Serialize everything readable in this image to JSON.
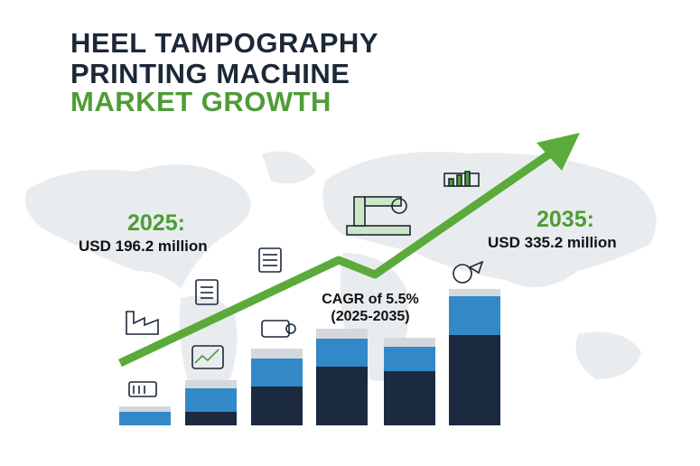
{
  "header": {
    "title_lines": [
      "HEEL TAMPOGRAPHY",
      "PRINTING MACHINE",
      "MARKET GROWTH"
    ]
  },
  "start": {
    "year": "2025:",
    "value": "USD 196.2 million"
  },
  "end": {
    "year": "2035:",
    "value": "USD 335.2 million"
  },
  "cagr": {
    "rate": "CAGR of 5.5%",
    "period": "(2025-2035)"
  }
}
